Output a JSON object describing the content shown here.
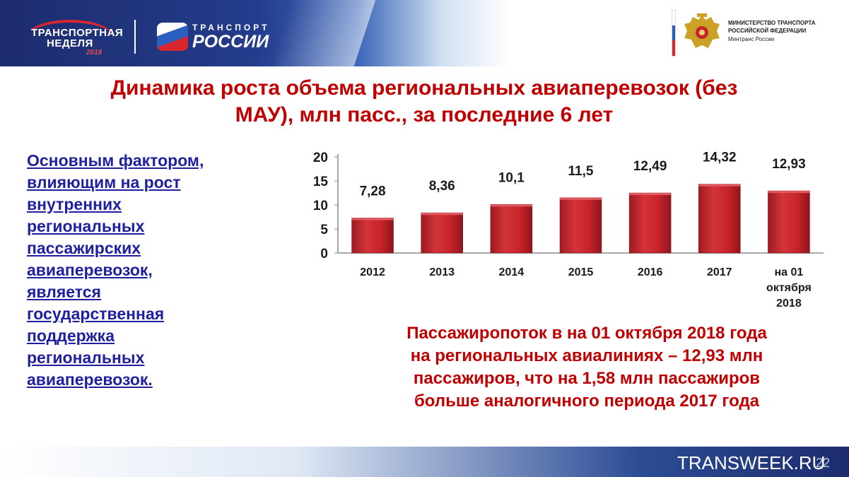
{
  "header": {
    "week_logo_line1": "ТРАНСПОРТНАЯ",
    "week_logo_line2": "НЕДЕЛЯ",
    "week_logo_year": "2018",
    "transport_logo_top": "ТРАНСПОРТ",
    "transport_logo_bottom": "РОССИИ",
    "ministry_line1": "МИНИСТЕРСТВО ТРАНСПОРТА",
    "ministry_line2": "РОССИЙСКОЙ ФЕДЕРАЦИИ",
    "ministry_line3": "Минтранс России"
  },
  "title": {
    "line1": "Динамика роста объема региональных авиаперевозок (без",
    "line2": "МАУ), млн пасс., за последние 6 лет"
  },
  "left_text": [
    "Основным фактором,",
    "влияющим на рост",
    "внутренних",
    "региональных",
    "пассажирских",
    "авиаперевозок,",
    "является",
    "государственная",
    "поддержка",
    "региональных",
    "авиаперевозок."
  ],
  "chart_data": {
    "type": "bar",
    "categories": [
      "2012",
      "2013",
      "2014",
      "2015",
      "2016",
      "2017",
      "на 01 октября 2018"
    ],
    "category_lines": [
      [
        "2012"
      ],
      [
        "2013"
      ],
      [
        "2014"
      ],
      [
        "2015"
      ],
      [
        "2016"
      ],
      [
        "2017"
      ],
      [
        "на 01",
        "октября",
        "2018"
      ]
    ],
    "values": [
      7.28,
      8.36,
      10.1,
      11.5,
      12.49,
      14.32,
      12.93
    ],
    "value_labels": [
      "7,28",
      "8,36",
      "10,1",
      "11,5",
      "12,49",
      "14,32",
      "12,93"
    ],
    "yticks": [
      0,
      5,
      10,
      15,
      20
    ],
    "ylim": [
      0,
      20
    ],
    "grid": false,
    "bar_color": "#c8242b"
  },
  "caption": [
    "Пассажиропоток в на 01 октября 2018 года",
    "на региональных авиалиниях – 12,93 млн",
    "пассажиров, что на 1,58 млн пассажиров",
    "больше аналогичного периода 2017 года"
  ],
  "footer": {
    "site": "TRANSWEEK.RU",
    "page": "22"
  }
}
